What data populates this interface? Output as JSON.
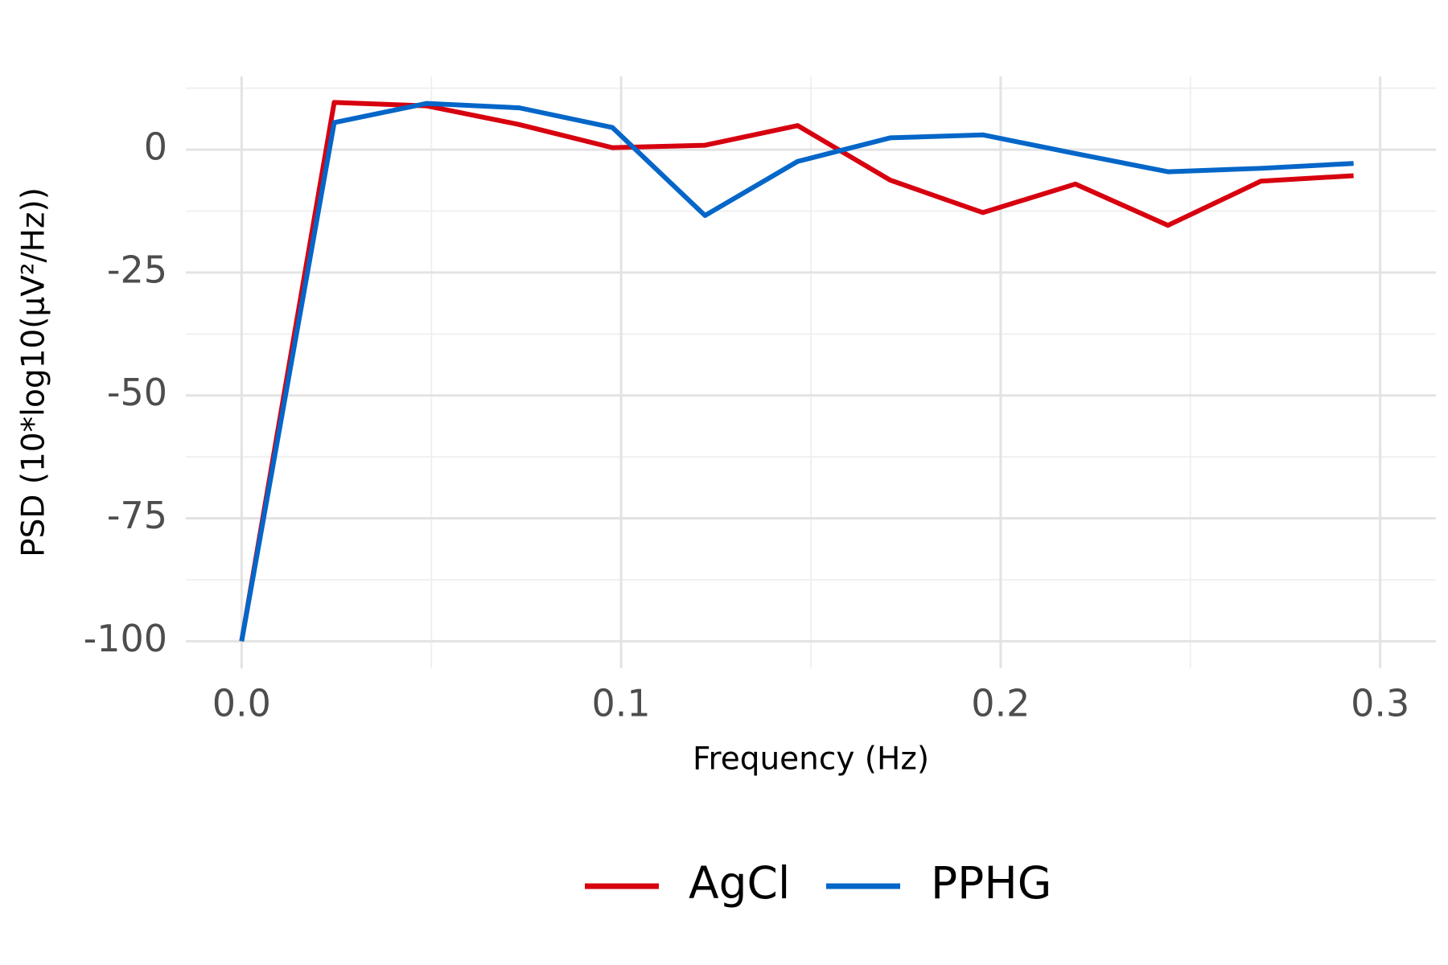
{
  "chart_data": {
    "type": "line",
    "xlabel": "Frequency (Hz)",
    "ylabel": "PSD (10*log10(µV²/Hz))",
    "x": [
      0,
      0.0244,
      0.0488,
      0.0732,
      0.0977,
      0.1221,
      0.1465,
      0.1709,
      0.1953,
      0.2197,
      0.2441,
      0.2686,
      0.293
    ],
    "series": [
      {
        "name": "AgCl",
        "color": "#d7000f",
        "values": [
          -100,
          9.6,
          8.9,
          5.1,
          0.4,
          0.9,
          4.9,
          -6.2,
          -12.8,
          -7.0,
          -15.4,
          -6.4,
          -5.3
        ]
      },
      {
        "name": "PPHG",
        "color": "#0466c8",
        "values": [
          -100,
          5.5,
          9.4,
          8.5,
          4.5,
          -13.4,
          -2.4,
          2.4,
          3.0,
          -0.8,
          -4.5,
          -3.8,
          -2.8
        ]
      }
    ],
    "xlim": [
      -0.0147,
      0.3147
    ],
    "ylim": [
      -105.5,
      14.9
    ],
    "xticks": [
      {
        "value": 0,
        "label": "0.0"
      },
      0.1,
      0.2,
      0.3
    ],
    "yticks": [
      0,
      -25,
      -50,
      -75,
      -100
    ],
    "minor_xticks": [
      0.05,
      0.15,
      0.25
    ],
    "minor_yticks": [
      12.5,
      -12.5,
      -37.5,
      -62.5,
      -87.5
    ],
    "grid": true,
    "legend": "bottom"
  }
}
